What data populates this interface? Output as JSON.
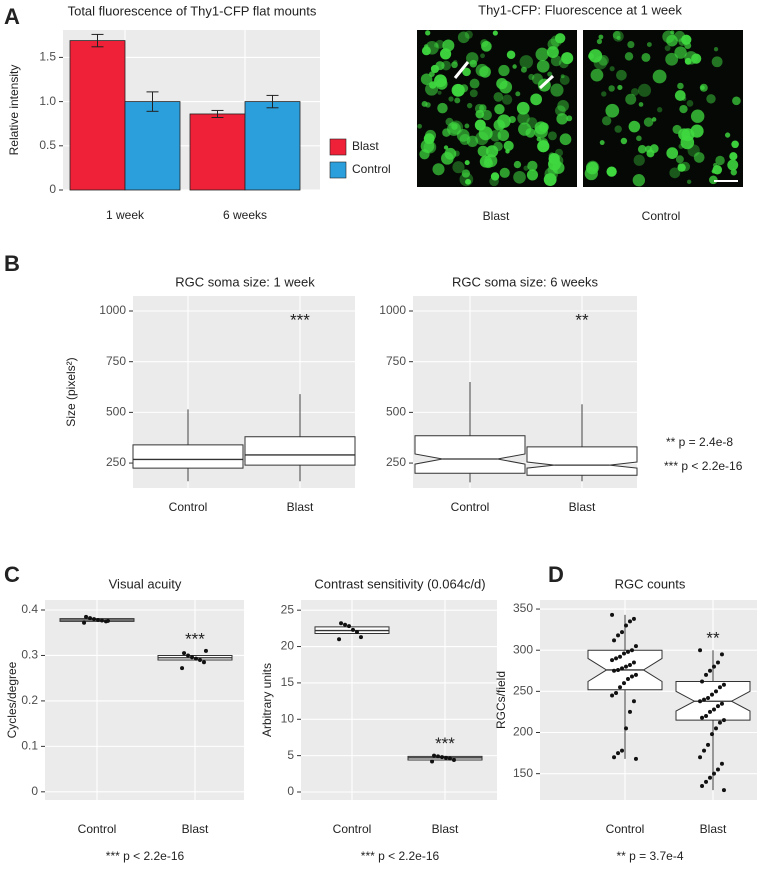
{
  "panel_labels": [
    "A",
    "B",
    "C",
    "D"
  ],
  "image_panel": {
    "title": "Thy1-CFP: Fluorescence at 1 week",
    "labels": [
      "Blast",
      "Control"
    ]
  },
  "b_notes": [
    "** p  = 2.4e-8",
    "*** p < 2.2e-16"
  ],
  "chart_data": [
    {
      "type": "bar",
      "title": "Total fluorescence of Thy1-CFP flat mounts",
      "y_label": "Relative intensity",
      "categories": [
        "1 week",
        "6 weeks"
      ],
      "series": [
        {
          "name": "Blast",
          "color": "#ef2138",
          "values": [
            1.69,
            0.86
          ],
          "errors": [
            0.07,
            0.04
          ]
        },
        {
          "name": "Control",
          "color": "#2b9fdc",
          "values": [
            1.0,
            1.0
          ],
          "errors": [
            0.11,
            0.07
          ]
        }
      ],
      "ylim": [
        0,
        1.81
      ],
      "yticks": [
        0,
        0.5,
        {
          "value": 1,
          "label": "1.0"
        },
        1.5
      ],
      "grid": true,
      "legend": "right"
    },
    {
      "type": "box",
      "title": "RGC soma size: 1 week",
      "y_label": "Size (pixels²)",
      "categories": [
        "Control",
        "Blast"
      ],
      "boxes": [
        {
          "box": [
            225,
            268,
            340
          ],
          "whiskers": [
            160,
            515
          ]
        },
        {
          "box": [
            240,
            290,
            380
          ],
          "whiskers": [
            160,
            590
          ],
          "annotation": "***"
        }
      ],
      "ylim": [
        127,
        1074
      ],
      "yticks": [
        250,
        500,
        750,
        1000
      ],
      "grid": true
    },
    {
      "type": "box",
      "title": "RGC soma size: 6 weeks",
      "categories": [
        "Control",
        "Blast"
      ],
      "boxes": [
        {
          "box": [
            200,
            270,
            385
          ],
          "notch": [
            245,
            295
          ],
          "whiskers": [
            155,
            650
          ]
        },
        {
          "box": [
            190,
            240,
            330
          ],
          "notch": [
            225,
            255
          ],
          "whiskers": [
            160,
            540
          ],
          "annotation": "**"
        }
      ],
      "ylim": [
        127,
        1074
      ],
      "yticks": [
        250,
        500,
        750,
        1000
      ],
      "grid": true
    },
    {
      "type": "box",
      "title": "Visual acuity",
      "y_label": "Cycles/degree",
      "note": "*** p < 2.2e-16",
      "categories": [
        "Control",
        "Blast"
      ],
      "boxes": [
        {
          "box": [
            0.375,
            0.378,
            0.381
          ],
          "points": [
            0.372,
            0.375,
            0.377,
            0.378,
            0.38,
            0.382,
            0.385,
            0.376
          ]
        },
        {
          "box": [
            0.29,
            0.295,
            0.3
          ],
          "points": [
            0.272,
            0.285,
            0.29,
            0.293,
            0.296,
            0.3,
            0.305,
            0.31
          ],
          "annotation": "***"
        }
      ],
      "ylim": [
        -0.018,
        0.422
      ],
      "yticks": [
        0,
        0.1,
        0.2,
        0.3,
        0.4
      ],
      "grid": true
    },
    {
      "type": "box",
      "title": "Contrast sensitivity (0.064c/d)",
      "y_label": "Arbitrary units",
      "note": "*** p < 2.2e-16",
      "categories": [
        "Control",
        "Blast"
      ],
      "boxes": [
        {
          "box": [
            21.8,
            22.2,
            22.7
          ],
          "points": [
            21,
            21.3,
            22,
            22.3,
            22.8,
            23,
            23.2
          ]
        },
        {
          "box": [
            4.4,
            4.7,
            4.9
          ],
          "points": [
            4.2,
            4.4,
            4.6,
            4.7,
            4.8,
            4.9,
            5
          ],
          "annotation": "***"
        }
      ],
      "ylim": [
        -1.1,
        26.4
      ],
      "yticks": [
        0,
        5,
        10,
        15,
        20,
        25
      ],
      "grid": true
    },
    {
      "type": "box",
      "title": "RGC counts",
      "y_label": "RGCs/field",
      "note": "** p  = 3.7e-4",
      "categories": [
        "Control",
        "Blast"
      ],
      "boxes": [
        {
          "box": [
            252,
            276,
            300
          ],
          "notch": [
            262,
            290
          ],
          "whiskers": [
            168,
            343
          ],
          "points": [
            343,
            338,
            335,
            330,
            322,
            318,
            312,
            305,
            300,
            298,
            296,
            292,
            290,
            288,
            285,
            282,
            280,
            278,
            276,
            275,
            270,
            268,
            265,
            260,
            255,
            248,
            245,
            238,
            225,
            205,
            178,
            175,
            170,
            168
          ]
        },
        {
          "box": [
            215,
            238,
            262
          ],
          "notch": [
            226,
            250
          ],
          "whiskers": [
            130,
            300
          ],
          "annotation": "**",
          "points": [
            300,
            295,
            285,
            280,
            275,
            270,
            262,
            258,
            255,
            250,
            246,
            242,
            240,
            238,
            235,
            232,
            228,
            225,
            220,
            218,
            215,
            212,
            205,
            198,
            185,
            178,
            170,
            162,
            155,
            150,
            145,
            140,
            135,
            130
          ]
        }
      ],
      "ylim": [
        118,
        361
      ],
      "yticks": [
        150,
        200,
        250,
        300,
        350
      ],
      "grid": true
    }
  ]
}
